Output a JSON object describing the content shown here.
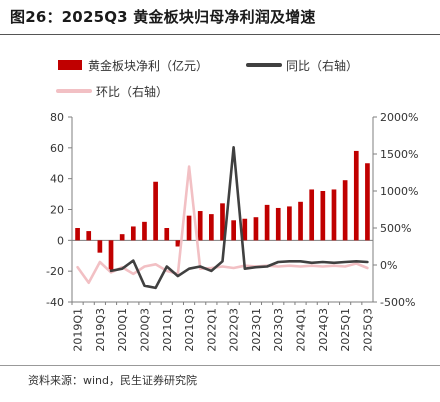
{
  "title": "图26：2025Q3 黄金板块归母净利润及增速",
  "source": "资料来源：wind，民生证券研究院",
  "colors": {
    "bar": "#c00000",
    "yoy": "#404040",
    "qoq": "#f2c0c4",
    "axis": "#7f7f7f"
  },
  "chart_data": {
    "type": "bar",
    "categories": [
      "2019Q1",
      "2019Q2",
      "2019Q3",
      "2019Q4",
      "2020Q1",
      "2020Q2",
      "2020Q3",
      "2020Q4",
      "2021Q1",
      "2021Q2",
      "2021Q3",
      "2021Q4",
      "2022Q1",
      "2022Q2",
      "2022Q3",
      "2022Q4",
      "2023Q1",
      "2023Q2",
      "2023Q3",
      "2023Q4",
      "2024Q1",
      "2024Q2",
      "2024Q3",
      "2024Q4",
      "2025Q1",
      "2025Q2",
      "2025Q3"
    ],
    "tick_labels": [
      "2019Q1",
      "2019Q3",
      "2020Q1",
      "2020Q3",
      "2021Q1",
      "2021Q3",
      "2022Q1",
      "2022Q3",
      "2023Q1",
      "2023Q3",
      "2024Q1",
      "2024Q3",
      "2025Q1",
      "2025Q3"
    ],
    "left_axis": {
      "ylim": [
        -40,
        80
      ],
      "ticks": [
        "-40",
        "-20",
        "0",
        "20",
        "40",
        "60",
        "80"
      ]
    },
    "right_axis": {
      "ylim": [
        -500,
        2000
      ],
      "ticks": [
        "-500%",
        "0%",
        "500%",
        "1000%",
        "1500%",
        "2000%"
      ]
    },
    "series": [
      {
        "name": "黄金板块净利（亿元）",
        "type": "bar",
        "axis": "left",
        "values": [
          8,
          6,
          -8,
          -20,
          4,
          9,
          12,
          38,
          8,
          -4,
          16,
          19,
          17,
          24,
          13,
          14,
          15,
          23,
          21,
          22,
          25,
          33,
          32,
          33,
          39,
          58,
          50
        ]
      },
      {
        "name": "同比（右轴）",
        "type": "line",
        "axis": "right",
        "values": [
          null,
          null,
          null,
          -80,
          -50,
          60,
          -280,
          -310,
          -20,
          -150,
          -50,
          -20,
          -80,
          50,
          1590,
          -50,
          -30,
          -20,
          40,
          50,
          50,
          30,
          40,
          30,
          40,
          50,
          40
        ]
      },
      {
        "name": "环比（右轴）",
        "type": "line",
        "axis": "right",
        "values": [
          -30,
          -240,
          40,
          -100,
          -30,
          -120,
          -20,
          10,
          -80,
          -120,
          1330,
          -50,
          -40,
          -20,
          -40,
          -10,
          -20,
          -10,
          -20,
          -10,
          -20,
          -10,
          -20,
          -10,
          -20,
          20,
          -40
        ]
      }
    ],
    "legend": {
      "position": "top"
    }
  }
}
